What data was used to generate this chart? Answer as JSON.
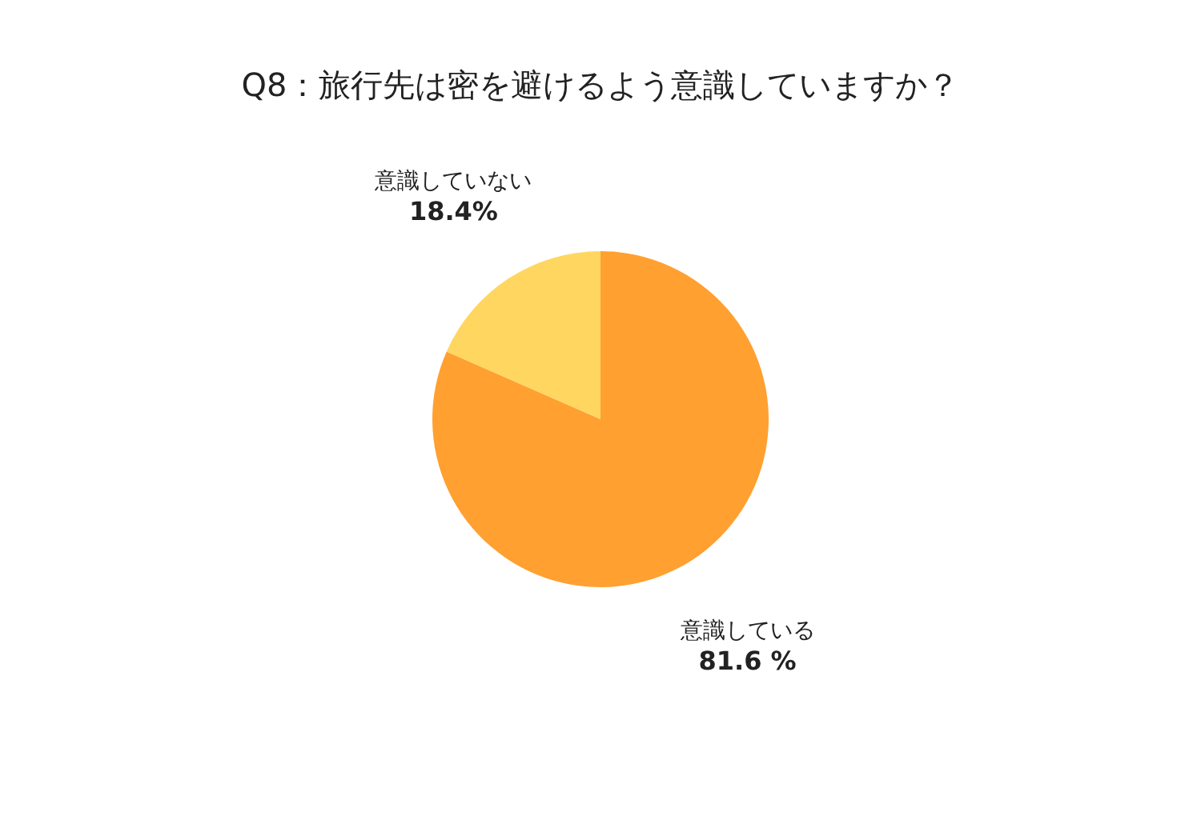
{
  "chart_data": {
    "type": "pie",
    "title": "Q8：旅行先は密を避けるよう意識していますか？",
    "categories": [
      "意識している",
      "意識していない"
    ],
    "values": [
      81.6,
      18.4
    ],
    "value_labels": [
      "81.6 %",
      "18.4%"
    ],
    "colors": [
      "#ffa030",
      "#ffd660"
    ],
    "legend": false
  }
}
